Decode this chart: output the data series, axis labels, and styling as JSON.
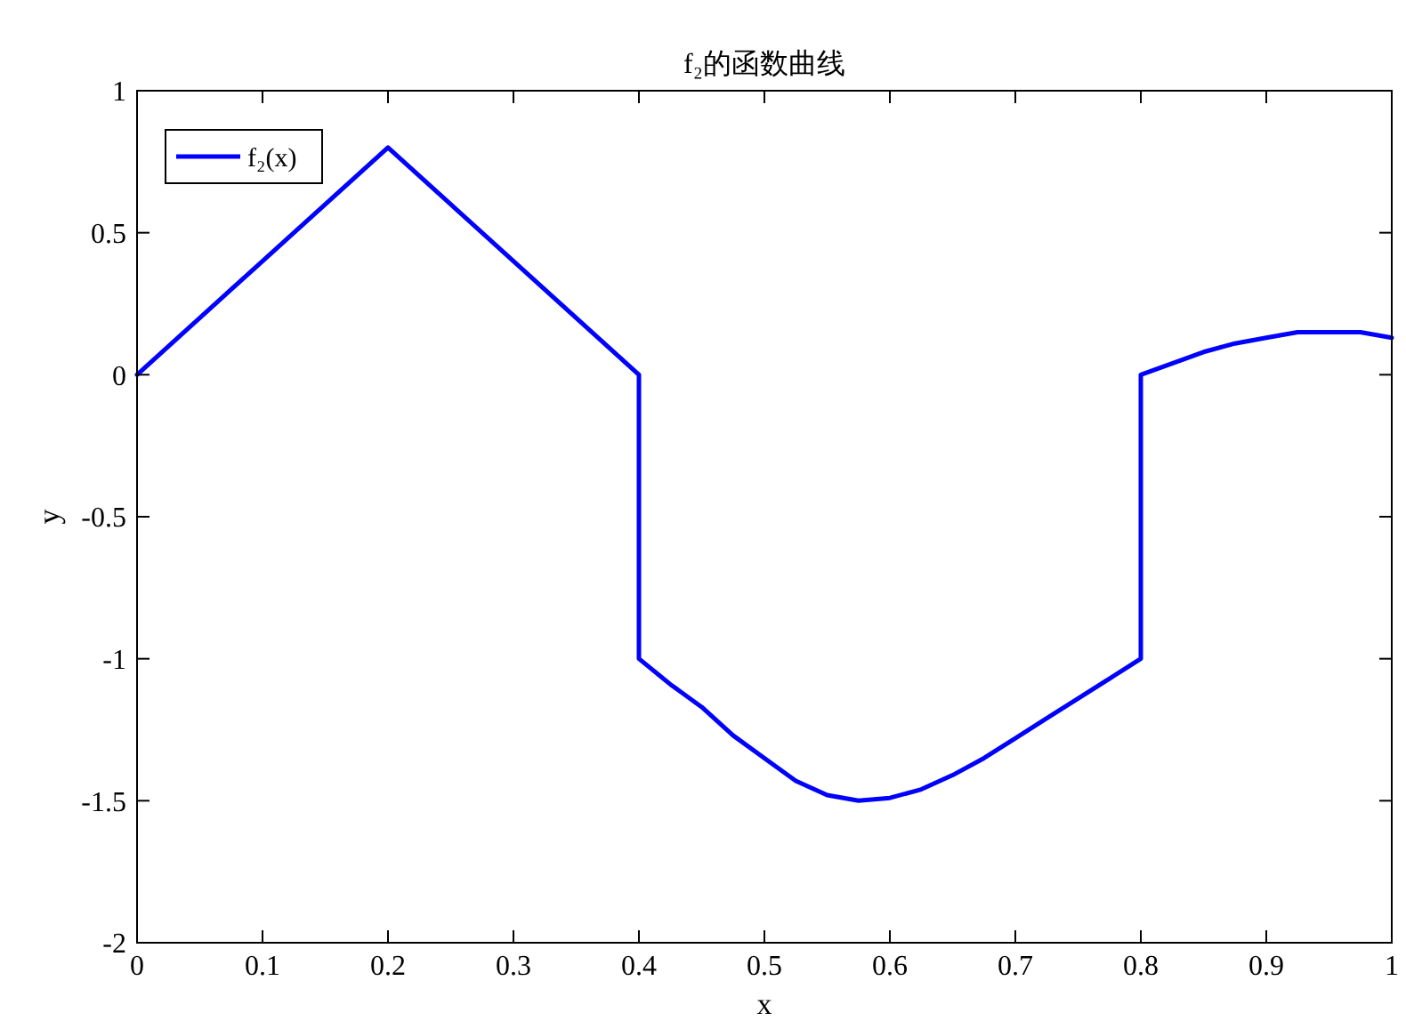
{
  "chart_data": {
    "type": "line",
    "title": "f₂的函数曲线",
    "xlabel": "x",
    "ylabel": "y",
    "series": [
      {
        "name": "f₂(x)",
        "color": "#0000ff",
        "x": [
          0,
          0.1,
          0.2,
          0.3,
          0.4,
          0.4,
          0.425,
          0.45,
          0.475,
          0.5,
          0.525,
          0.55,
          0.575,
          0.6,
          0.625,
          0.65,
          0.675,
          0.7,
          0.725,
          0.75,
          0.775,
          0.8,
          0.8,
          0.825,
          0.85,
          0.875,
          0.9,
          0.925,
          0.95,
          0.975,
          1
        ],
        "values": [
          0,
          0.4,
          0.8,
          0.4,
          0,
          -1,
          -1.09,
          -1.17,
          -1.27,
          -1.35,
          -1.43,
          -1.48,
          -1.5,
          -1.49,
          -1.46,
          -1.41,
          -1.35,
          -1.28,
          -1.21,
          -1.14,
          -1.07,
          -1,
          0,
          0.04,
          0.08,
          0.11,
          0.13,
          0.15,
          0.15,
          0.15,
          0.13
        ]
      }
    ],
    "xlim": [
      0,
      1
    ],
    "xticks": [
      0,
      0.1,
      0.2,
      0.3,
      0.4,
      0.5,
      0.6,
      0.7,
      0.8,
      0.9,
      1
    ],
    "ylim": [
      -2,
      1
    ],
    "yticks": [
      -2,
      -1.5,
      -1,
      -0.5,
      0,
      0.5,
      1
    ],
    "legend": "top left",
    "grid": false,
    "marker": "none",
    "line_style": "solid"
  }
}
